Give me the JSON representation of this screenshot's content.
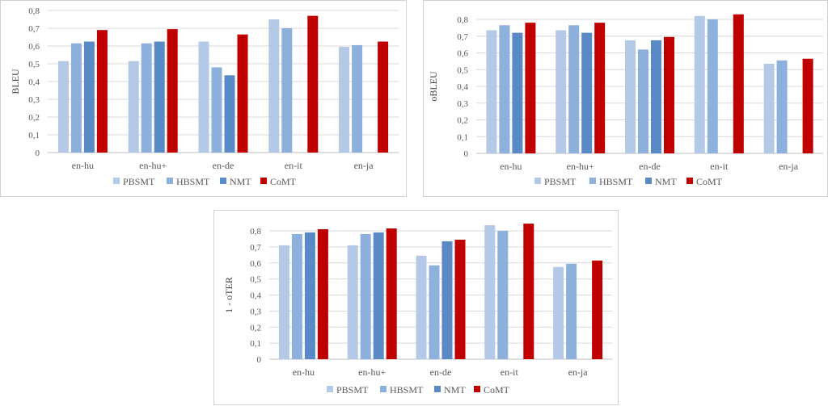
{
  "chart_data": [
    {
      "type": "bar",
      "ylabel": "BLEU",
      "xlabel": "",
      "ylim": [
        0,
        0.8
      ],
      "yticks": [
        "0",
        "0,1",
        "0,2",
        "0,3",
        "0,4",
        "0,5",
        "0,6",
        "0,7",
        "0,8"
      ],
      "categories": [
        "en-hu",
        "en-hu+",
        "en-de",
        "en-it",
        "en-ja"
      ],
      "legend_position": "bottom",
      "series": [
        {
          "name": "PBSMT",
          "color": "#b4c9e5",
          "values": [
            0.515,
            0.515,
            0.625,
            0.75,
            0.595
          ]
        },
        {
          "name": "HBSMT",
          "color": "#8eb0dc",
          "values": [
            0.615,
            0.615,
            0.48,
            0.7,
            0.605
          ]
        },
        {
          "name": "NMT",
          "color": "#5a8ac6",
          "values": [
            0.625,
            0.625,
            0.435,
            null,
            null
          ]
        },
        {
          "name": "CoMT",
          "color": "#c00000",
          "values": [
            0.69,
            0.695,
            0.665,
            0.77,
            0.625
          ]
        }
      ]
    },
    {
      "type": "bar",
      "ylabel": "oBLEU",
      "xlabel": "",
      "ylim": [
        0,
        0.8
      ],
      "yticks": [
        "0",
        "0,1",
        "0,2",
        "0,3",
        "0,4",
        "0,5",
        "0,6",
        "0,7",
        "0,8"
      ],
      "categories": [
        "en-hu",
        "en-hu+",
        "en-de",
        "en-it",
        "en-ja"
      ],
      "legend_position": "bottom",
      "series": [
        {
          "name": "PBSMT",
          "color": "#b4c9e5",
          "values": [
            0.735,
            0.735,
            0.675,
            0.82,
            0.535
          ]
        },
        {
          "name": "HBSMT",
          "color": "#8eb0dc",
          "values": [
            0.765,
            0.765,
            0.62,
            0.8,
            0.555
          ]
        },
        {
          "name": "NMT",
          "color": "#5a8ac6",
          "values": [
            0.72,
            0.72,
            0.675,
            null,
            null
          ]
        },
        {
          "name": "CoMT",
          "color": "#c00000",
          "values": [
            0.78,
            0.78,
            0.695,
            0.83,
            0.565
          ]
        }
      ]
    },
    {
      "type": "bar",
      "ylabel": "1 - oTER",
      "xlabel": "",
      "ylim": [
        0,
        0.8
      ],
      "yticks": [
        "0",
        "0,1",
        "0,2",
        "0,3",
        "0,4",
        "0,5",
        "0,6",
        "0,7",
        "0,8"
      ],
      "categories": [
        "en-hu",
        "en-hu+",
        "en-de",
        "en-it",
        "en-ja"
      ],
      "legend_position": "bottom",
      "series": [
        {
          "name": "PBSMT",
          "color": "#b4c9e5",
          "values": [
            0.71,
            0.71,
            0.645,
            0.835,
            0.575
          ]
        },
        {
          "name": "HBSMT",
          "color": "#8eb0dc",
          "values": [
            0.78,
            0.78,
            0.585,
            0.8,
            0.595
          ]
        },
        {
          "name": "NMT",
          "color": "#5a8ac6",
          "values": [
            0.79,
            0.79,
            0.735,
            null,
            null
          ]
        },
        {
          "name": "CoMT",
          "color": "#c00000",
          "values": [
            0.81,
            0.815,
            0.745,
            0.845,
            0.615
          ]
        }
      ]
    }
  ]
}
